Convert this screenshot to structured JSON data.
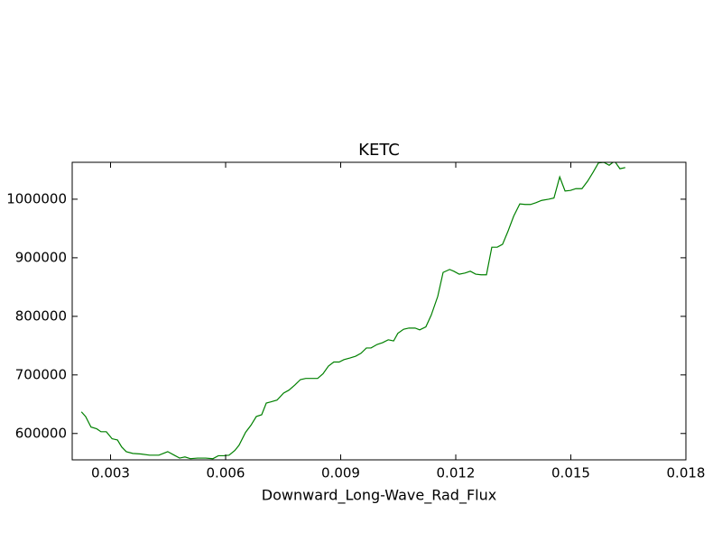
{
  "chart_data": {
    "type": "line",
    "title": "KETC",
    "xlabel": "Downward_Long-Wave_Rad_Flux",
    "x": [
      0.00224,
      0.00235,
      0.00249,
      0.00264,
      0.00275,
      0.00289,
      0.00304,
      0.00318,
      0.00329,
      0.00341,
      0.00358,
      0.00379,
      0.00402,
      0.00426,
      0.00449,
      0.00466,
      0.0048,
      0.00494,
      0.00508,
      0.00527,
      0.00548,
      0.00567,
      0.00581,
      0.00595,
      0.00609,
      0.00624,
      0.00635,
      0.00652,
      0.00666,
      0.0068,
      0.00694,
      0.00706,
      0.00718,
      0.00734,
      0.00751,
      0.00765,
      0.00781,
      0.00795,
      0.00809,
      0.00824,
      0.0084,
      0.00854,
      0.00868,
      0.00882,
      0.00896,
      0.00908,
      0.00925,
      0.00939,
      0.00953,
      0.00967,
      0.00979,
      0.00995,
      0.01009,
      0.01024,
      0.01038,
      0.01049,
      0.01064,
      0.01078,
      0.01094,
      0.01106,
      0.01122,
      0.01136,
      0.01153,
      0.01167,
      0.01184,
      0.01195,
      0.01209,
      0.01224,
      0.01238,
      0.01252,
      0.01266,
      0.0128,
      0.01294,
      0.01308,
      0.01322,
      0.01336,
      0.01351,
      0.01367,
      0.01381,
      0.01395,
      0.01409,
      0.01424,
      0.01442,
      0.01456,
      0.01471,
      0.01485,
      0.01499,
      0.01513,
      0.01529,
      0.01544,
      0.01558,
      0.01572,
      0.01586,
      0.016,
      0.01614,
      0.01628,
      0.01642
    ],
    "series": [
      {
        "color": "#008000",
        "values": [
          637000,
          629000,
          611000,
          608000,
          603000,
          603000,
          591000,
          589000,
          577000,
          569000,
          566000,
          565000,
          563000,
          563000,
          569000,
          563000,
          558000,
          560000,
          557000,
          558000,
          558000,
          557000,
          562000,
          562000,
          563000,
          571000,
          580000,
          602000,
          614000,
          629000,
          632000,
          652000,
          654000,
          657000,
          669000,
          674000,
          683000,
          692000,
          694000,
          694000,
          694000,
          702000,
          715000,
          722000,
          722000,
          726000,
          729000,
          732000,
          737000,
          746000,
          746000,
          752000,
          755000,
          760000,
          758000,
          771000,
          778000,
          780000,
          780000,
          777000,
          782000,
          802000,
          834000,
          875000,
          880000,
          877000,
          872000,
          874000,
          877000,
          872000,
          871000,
          871000,
          918000,
          918000,
          923000,
          945000,
          971000,
          992000,
          991000,
          991000,
          994000,
          998000,
          1000000,
          1002000,
          1038000,
          1014000,
          1015000,
          1018000,
          1018000,
          1031000,
          1046000,
          1062000,
          1063000,
          1058000,
          1065000,
          1052000,
          1054000
        ]
      }
    ],
    "xlim": [
      0.002,
      0.018
    ],
    "xticks": [
      0.003,
      0.006,
      0.009,
      0.012,
      0.015,
      0.018
    ],
    "ylim": [
      555000,
      1063000
    ],
    "yticks": [
      600000,
      700000,
      800000,
      900000,
      1000000
    ]
  }
}
